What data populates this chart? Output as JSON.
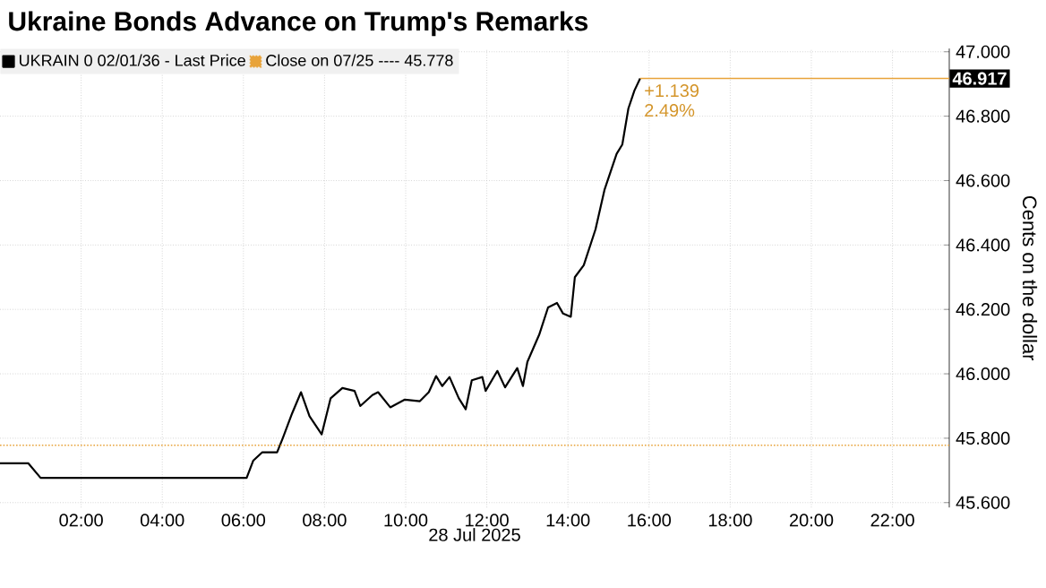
{
  "chart_data": {
    "type": "line",
    "title": "Ukraine Bonds Advance on Trump's Remarks",
    "xlabel": "28 Jul 2025",
    "ylabel": "Cents on the dollar",
    "xlim": [
      0,
      23.4
    ],
    "ylim": [
      45.585,
      47.01
    ],
    "xticks": [
      {
        "value": 2,
        "label": "02:00"
      },
      {
        "value": 4,
        "label": "04:00"
      },
      {
        "value": 6,
        "label": "06:00"
      },
      {
        "value": 8,
        "label": "08:00"
      },
      {
        "value": 10,
        "label": "10:00"
      },
      {
        "value": 12,
        "label": "12:00"
      },
      {
        "value": 14,
        "label": "14:00"
      },
      {
        "value": 16,
        "label": "16:00"
      },
      {
        "value": 18,
        "label": "18:00"
      },
      {
        "value": 20,
        "label": "20:00"
      },
      {
        "value": 22,
        "label": "22:00"
      }
    ],
    "yticks": [
      {
        "value": 45.6,
        "label": "45.600"
      },
      {
        "value": 45.8,
        "label": "45.800"
      },
      {
        "value": 46,
        "label": "46.000"
      },
      {
        "value": 46.2,
        "label": "46.200"
      },
      {
        "value": 46.4,
        "label": "46.400"
      },
      {
        "value": 46.6,
        "label": "46.600"
      },
      {
        "value": 46.8,
        "label": "46.800"
      },
      {
        "value": 47,
        "label": "47.000"
      }
    ],
    "grid": true,
    "legend": "top left",
    "series": [
      {
        "name": "UKRAIN 0 02/01/36 - Last Price",
        "color": "#000000",
        "x": [
          0,
          0.7,
          1.0,
          6.08,
          6.24,
          6.46,
          6.83,
          6.97,
          7.2,
          7.42,
          7.63,
          7.93,
          8.15,
          8.44,
          8.74,
          8.88,
          9.18,
          9.32,
          9.62,
          9.98,
          10.35,
          10.57,
          10.75,
          10.9,
          11.08,
          11.31,
          11.48,
          11.63,
          11.89,
          11.97,
          12.26,
          12.45,
          12.75,
          12.89,
          13.0,
          13.29,
          13.51,
          13.73,
          13.88,
          14.07,
          14.17,
          14.39,
          14.68,
          14.9,
          15.2,
          15.34,
          15.49,
          15.64,
          15.78
        ],
        "values": [
          45.722,
          45.722,
          45.677,
          45.677,
          45.73,
          45.756,
          45.756,
          45.8,
          45.877,
          45.943,
          45.868,
          45.812,
          45.924,
          45.956,
          45.947,
          45.9,
          45.934,
          45.943,
          45.896,
          45.92,
          45.915,
          45.943,
          45.993,
          45.962,
          45.99,
          45.924,
          45.89,
          45.98,
          45.99,
          45.947,
          46.009,
          45.958,
          46.018,
          45.962,
          46.037,
          46.121,
          46.206,
          46.22,
          46.187,
          46.177,
          46.3,
          46.337,
          46.449,
          46.571,
          46.683,
          46.712,
          46.824,
          46.88,
          46.917
        ]
      }
    ],
    "ref_lines": [
      {
        "axis": "y",
        "value": 45.778,
        "label": "Close on 07/25 ---- 45.778",
        "color": "#e8a33a",
        "line_style": "dotted"
      },
      {
        "axis": "y",
        "value": 46.917,
        "label": "46.917",
        "color": "#e8a33a",
        "line_style": "solid"
      }
    ],
    "annotations": [
      {
        "text": "+1.139",
        "x": 15.78,
        "y": 46.917
      },
      {
        "text": "2.49%",
        "x": 15.78,
        "y": 46.917
      }
    ]
  }
}
